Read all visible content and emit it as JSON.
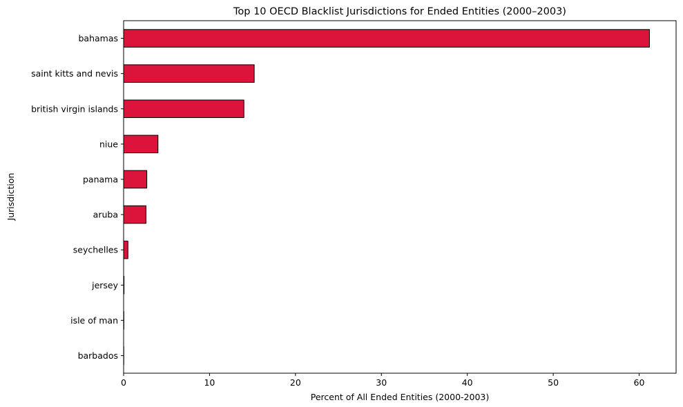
{
  "chart_data": {
    "type": "bar",
    "orientation": "horizontal",
    "title": "Top 10 OECD Blacklist Jurisdictions for Ended Entities (2000–2003)",
    "xlabel": "Percent of All Ended Entities (2000-2003)",
    "ylabel": "Jurisdiction",
    "categories": [
      "bahamas",
      "saint kitts and nevis",
      "british virgin islands",
      "niue",
      "panama",
      "aruba",
      "seychelles",
      "jersey",
      "isle of man",
      "barbados"
    ],
    "values": [
      61.2,
      15.2,
      14.0,
      4.0,
      2.7,
      2.6,
      0.5,
      0.05,
      0.03,
      0.02
    ],
    "xlim": [
      0,
      64.3
    ],
    "xticks": [
      0,
      10,
      20,
      30,
      40,
      50,
      60
    ],
    "grid": false,
    "bar_color": "#dc143c",
    "edge_color": "#000000"
  }
}
